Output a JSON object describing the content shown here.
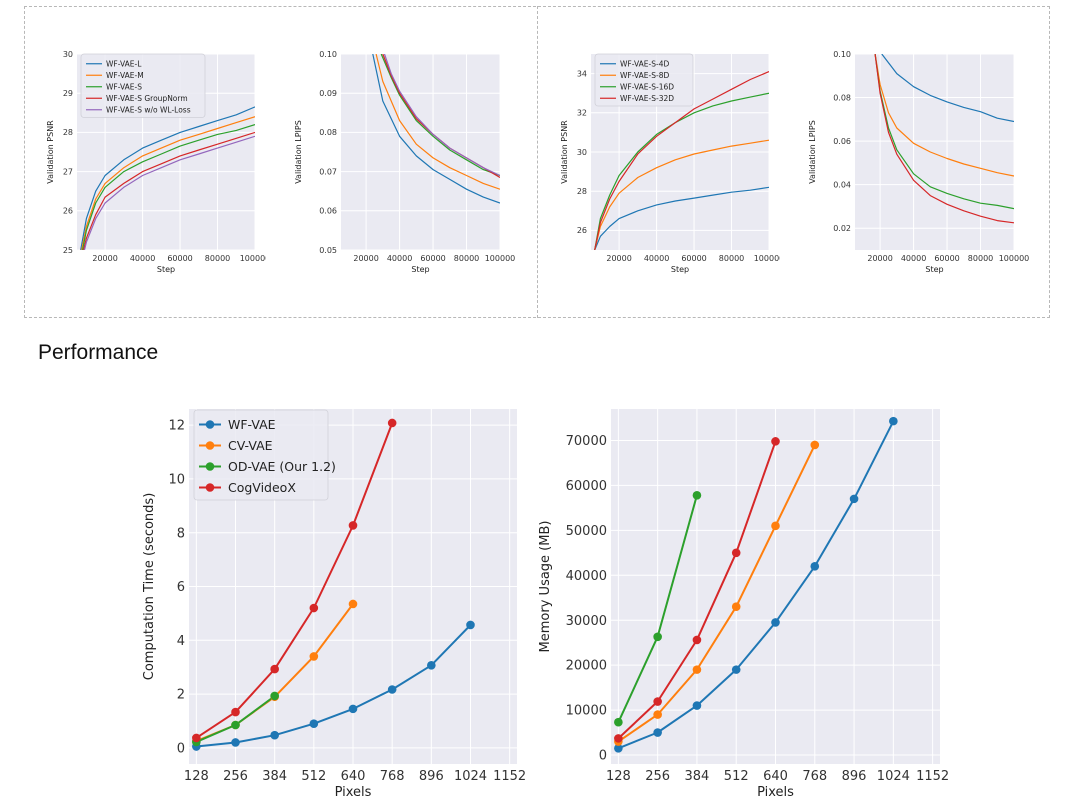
{
  "section_title": "Performance",
  "colors": {
    "blue": "#1f77b4",
    "orange": "#ff7f0e",
    "green": "#2ca02c",
    "red": "#d62728",
    "purple": "#9467bd",
    "plot_bg": "#eaeaf2",
    "grid": "#ffffff"
  },
  "chart_data": [
    {
      "id": "psnr-model-size",
      "type": "line",
      "xlabel": "Step",
      "ylabel": "Validation PSNR",
      "xlim": [
        5000,
        100000
      ],
      "ylim": [
        25,
        30
      ],
      "xticks": [
        20000,
        40000,
        60000,
        80000,
        100000
      ],
      "yticks": [
        25,
        26,
        27,
        28,
        29,
        30
      ],
      "legend": "top-left",
      "series": [
        {
          "name": "WF-VAE-L",
          "color": "#1f77b4",
          "x": [
            7000,
            10000,
            15000,
            20000,
            30000,
            40000,
            50000,
            60000,
            70000,
            80000,
            90000,
            100000
          ],
          "y": [
            25.0,
            25.8,
            26.5,
            26.9,
            27.3,
            27.6,
            27.8,
            28.0,
            28.15,
            28.3,
            28.45,
            28.65
          ]
        },
        {
          "name": "WF-VAE-M",
          "color": "#ff7f0e",
          "x": [
            7500,
            10000,
            15000,
            20000,
            30000,
            40000,
            50000,
            60000,
            70000,
            80000,
            90000,
            100000
          ],
          "y": [
            25.0,
            25.6,
            26.3,
            26.7,
            27.1,
            27.4,
            27.6,
            27.8,
            27.95,
            28.1,
            28.25,
            28.4
          ]
        },
        {
          "name": "WF-VAE-S",
          "color": "#2ca02c",
          "x": [
            8000,
            10000,
            15000,
            20000,
            30000,
            40000,
            50000,
            60000,
            70000,
            80000,
            90000,
            100000
          ],
          "y": [
            25.0,
            25.5,
            26.2,
            26.6,
            27.0,
            27.25,
            27.45,
            27.65,
            27.8,
            27.95,
            28.05,
            28.2
          ]
        },
        {
          "name": "WF-VAE-S GroupNorm",
          "color": "#d62728",
          "x": [
            8500,
            10000,
            15000,
            20000,
            30000,
            40000,
            50000,
            60000,
            70000,
            80000,
            90000,
            100000
          ],
          "y": [
            25.0,
            25.3,
            25.9,
            26.35,
            26.7,
            27.0,
            27.2,
            27.4,
            27.55,
            27.7,
            27.85,
            28.0
          ]
        },
        {
          "name": "WF-VAE-S w/o WL-Loss",
          "color": "#9467bd",
          "x": [
            9000,
            10000,
            15000,
            20000,
            30000,
            40000,
            50000,
            60000,
            70000,
            80000,
            90000,
            100000
          ],
          "y": [
            25.0,
            25.2,
            25.8,
            26.2,
            26.6,
            26.9,
            27.1,
            27.3,
            27.45,
            27.6,
            27.75,
            27.9
          ]
        }
      ]
    },
    {
      "id": "lpips-model-size",
      "type": "line",
      "xlabel": "Step",
      "ylabel": "Validation LPIPS",
      "xlim": [
        5000,
        100000
      ],
      "ylim": [
        0.05,
        0.1
      ],
      "xticks": [
        20000,
        40000,
        60000,
        80000,
        100000
      ],
      "yticks": [
        0.05,
        0.06,
        0.07,
        0.08,
        0.09,
        0.1
      ],
      "legend": "none",
      "series": [
        {
          "name": "WF-VAE-L",
          "color": "#1f77b4",
          "x": [
            24000,
            30000,
            40000,
            50000,
            60000,
            70000,
            80000,
            90000,
            100000
          ],
          "y": [
            0.1,
            0.088,
            0.079,
            0.074,
            0.0705,
            0.068,
            0.0655,
            0.0635,
            0.062
          ]
        },
        {
          "name": "WF-VAE-M",
          "color": "#ff7f0e",
          "x": [
            26000,
            30000,
            40000,
            50000,
            60000,
            70000,
            80000,
            90000,
            100000
          ],
          "y": [
            0.1,
            0.093,
            0.083,
            0.077,
            0.0735,
            0.071,
            0.069,
            0.067,
            0.0655
          ]
        },
        {
          "name": "WF-VAE-S",
          "color": "#2ca02c",
          "x": [
            29000,
            35000,
            40000,
            50000,
            60000,
            70000,
            80000,
            90000,
            100000
          ],
          "y": [
            0.1,
            0.094,
            0.0895,
            0.083,
            0.079,
            0.0755,
            0.073,
            0.0705,
            0.069
          ]
        },
        {
          "name": "WF-VAE-S GroupNorm",
          "color": "#d62728",
          "x": [
            30000,
            35000,
            40000,
            50000,
            60000,
            70000,
            80000,
            90000,
            100000
          ],
          "y": [
            0.1,
            0.0945,
            0.09,
            0.0835,
            0.0795,
            0.076,
            0.0735,
            0.071,
            0.0685
          ]
        },
        {
          "name": "WF-VAE-S w/o WL-Loss",
          "color": "#9467bd",
          "x": [
            31000,
            35000,
            40000,
            50000,
            60000,
            70000,
            80000,
            90000,
            100000
          ],
          "y": [
            0.1,
            0.095,
            0.0905,
            0.084,
            0.0795,
            0.076,
            0.0735,
            0.071,
            0.069
          ]
        }
      ]
    },
    {
      "id": "psnr-latent-dim",
      "type": "line",
      "xlabel": "Step",
      "ylabel": "Validation PSNR",
      "xlim": [
        5000,
        100000
      ],
      "ylim": [
        25,
        35
      ],
      "xticks": [
        20000,
        40000,
        60000,
        80000,
        100000
      ],
      "yticks": [
        26,
        28,
        30,
        32,
        34
      ],
      "legend": "top-left",
      "series": [
        {
          "name": "WF-VAE-S-4D",
          "color": "#1f77b4",
          "x": [
            7000,
            10000,
            15000,
            20000,
            30000,
            40000,
            50000,
            60000,
            70000,
            80000,
            90000,
            100000
          ],
          "y": [
            25.0,
            25.7,
            26.2,
            26.6,
            27.0,
            27.3,
            27.5,
            27.65,
            27.8,
            27.95,
            28.05,
            28.2
          ]
        },
        {
          "name": "WF-VAE-S-8D",
          "color": "#ff7f0e",
          "x": [
            7000,
            10000,
            15000,
            20000,
            30000,
            40000,
            50000,
            60000,
            70000,
            80000,
            90000,
            100000
          ],
          "y": [
            25.0,
            26.2,
            27.2,
            27.9,
            28.7,
            29.2,
            29.6,
            29.9,
            30.1,
            30.3,
            30.45,
            30.6
          ]
        },
        {
          "name": "WF-VAE-S-16D",
          "color": "#2ca02c",
          "x": [
            7000,
            10000,
            15000,
            20000,
            30000,
            40000,
            50000,
            60000,
            70000,
            80000,
            90000,
            100000
          ],
          "y": [
            25.0,
            26.6,
            27.8,
            28.8,
            30.0,
            30.9,
            31.5,
            32.0,
            32.35,
            32.6,
            32.8,
            33.0
          ]
        },
        {
          "name": "WF-VAE-S-32D",
          "color": "#d62728",
          "x": [
            7000,
            10000,
            15000,
            20000,
            30000,
            40000,
            50000,
            60000,
            70000,
            80000,
            90000,
            100000
          ],
          "y": [
            25.0,
            26.4,
            27.6,
            28.5,
            29.9,
            30.8,
            31.5,
            32.2,
            32.7,
            33.2,
            33.7,
            34.1
          ]
        }
      ]
    },
    {
      "id": "lpips-latent-dim",
      "type": "line",
      "xlabel": "Step",
      "ylabel": "Validation LPIPS",
      "xlim": [
        5000,
        100000
      ],
      "ylim": [
        0.01,
        0.1
      ],
      "xticks": [
        20000,
        40000,
        60000,
        80000,
        100000
      ],
      "yticks": [
        0.02,
        0.04,
        0.06,
        0.08,
        0.1
      ],
      "legend": "none",
      "series": [
        {
          "name": "WF-VAE-S-4D",
          "color": "#1f77b4",
          "x": [
            21000,
            30000,
            40000,
            50000,
            60000,
            70000,
            80000,
            90000,
            100000
          ],
          "y": [
            0.1,
            0.091,
            0.085,
            0.081,
            0.078,
            0.0755,
            0.0735,
            0.0705,
            0.069
          ]
        },
        {
          "name": "WF-VAE-S-8D",
          "color": "#ff7f0e",
          "x": [
            17000,
            20000,
            25000,
            30000,
            40000,
            50000,
            60000,
            70000,
            80000,
            90000,
            100000
          ],
          "y": [
            0.1,
            0.086,
            0.073,
            0.066,
            0.059,
            0.055,
            0.052,
            0.0495,
            0.0475,
            0.0455,
            0.044
          ]
        },
        {
          "name": "WF-VAE-S-16D",
          "color": "#2ca02c",
          "x": [
            17000,
            20000,
            25000,
            30000,
            40000,
            50000,
            60000,
            70000,
            80000,
            90000,
            100000
          ],
          "y": [
            0.1,
            0.083,
            0.066,
            0.056,
            0.045,
            0.039,
            0.036,
            0.0335,
            0.0315,
            0.0305,
            0.029
          ]
        },
        {
          "name": "WF-VAE-S-32D",
          "color": "#d62728",
          "x": [
            17000,
            20000,
            25000,
            30000,
            40000,
            50000,
            60000,
            70000,
            80000,
            90000,
            100000
          ],
          "y": [
            0.1,
            0.082,
            0.064,
            0.054,
            0.042,
            0.035,
            0.031,
            0.028,
            0.0255,
            0.0235,
            0.0225
          ]
        }
      ]
    },
    {
      "id": "computation-time",
      "type": "line",
      "xlabel": "Pixels",
      "ylabel": "Computation Time (seconds)",
      "xlim": [
        104,
        1176
      ],
      "ylim": [
        -0.6,
        12.6
      ],
      "xticks": [
        128,
        256,
        384,
        512,
        640,
        768,
        896,
        1024,
        1152
      ],
      "yticks": [
        0,
        2,
        4,
        6,
        8,
        10,
        12
      ],
      "legend": "top-left",
      "series": [
        {
          "name": "WF-VAE",
          "color": "#1f77b4",
          "x": [
            128,
            256,
            384,
            512,
            640,
            768,
            896,
            1024
          ],
          "y": [
            0.05,
            0.2,
            0.47,
            0.9,
            1.45,
            2.17,
            3.07,
            4.57
          ]
        },
        {
          "name": "CV-VAE",
          "color": "#ff7f0e",
          "x": [
            128,
            256,
            384,
            512,
            640
          ],
          "y": [
            0.25,
            0.85,
            1.9,
            3.4,
            5.35
          ]
        },
        {
          "name": "OD-VAE (Our 1.2)",
          "color": "#2ca02c",
          "x": [
            128,
            256,
            384
          ],
          "y": [
            0.22,
            0.85,
            1.93
          ]
        },
        {
          "name": "CogVideoX",
          "color": "#d62728",
          "x": [
            128,
            256,
            384,
            512,
            640,
            768
          ],
          "y": [
            0.37,
            1.33,
            2.93,
            5.2,
            8.27,
            12.08
          ]
        }
      ]
    },
    {
      "id": "memory-usage",
      "type": "line",
      "xlabel": "Pixels",
      "ylabel": "Memory Usage (MB)",
      "xlim": [
        104,
        1176
      ],
      "ylim": [
        -2000,
        77000
      ],
      "xticks": [
        128,
        256,
        384,
        512,
        640,
        768,
        896,
        1024,
        1152
      ],
      "yticks": [
        0,
        10000,
        20000,
        30000,
        40000,
        50000,
        60000,
        70000
      ],
      "legend": "none",
      "series": [
        {
          "name": "WF-VAE",
          "color": "#1f77b4",
          "x": [
            128,
            256,
            384,
            512,
            640,
            768,
            896,
            1024
          ],
          "y": [
            1500,
            5000,
            11000,
            19000,
            29500,
            42000,
            57000,
            74300
          ]
        },
        {
          "name": "CV-VAE",
          "color": "#ff7f0e",
          "x": [
            128,
            256,
            384,
            512,
            640,
            768
          ],
          "y": [
            3000,
            9000,
            19000,
            33000,
            51000,
            69000
          ]
        },
        {
          "name": "OD-VAE (Our 1.2)",
          "color": "#2ca02c",
          "x": [
            128,
            256,
            384
          ],
          "y": [
            7300,
            26300,
            57800
          ]
        },
        {
          "name": "CogVideoX",
          "color": "#d62728",
          "x": [
            128,
            256,
            384,
            512,
            640
          ],
          "y": [
            3700,
            11900,
            25600,
            45000,
            69800
          ]
        }
      ]
    }
  ]
}
